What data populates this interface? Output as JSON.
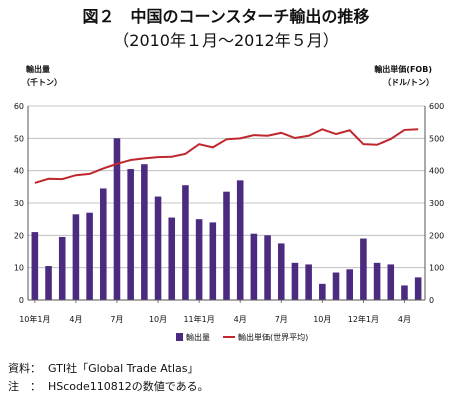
{
  "chart_data": {
    "type": "bar",
    "title": "図２　中国のコーンスターチ輸出の推移",
    "subtitle": "（2010年１月～2012年５月）",
    "y_left_label_line1": "輸出量",
    "y_left_label_line2": "（千トン）",
    "y_right_label_line1": "輸出単価(FOB)",
    "y_right_label_line2": "（ドル/トン）",
    "ylim_left": [
      0,
      60
    ],
    "ylim_right": [
      0,
      600
    ],
    "yticks_left": [
      "0",
      "10",
      "20",
      "30",
      "40",
      "50",
      "60"
    ],
    "yticks_right": [
      "0",
      "100",
      "200",
      "300",
      "400",
      "500",
      "600"
    ],
    "x_tick_labels": [
      {
        "index": 0,
        "label": "10年1月"
      },
      {
        "index": 3,
        "label": "4月"
      },
      {
        "index": 6,
        "label": "7月"
      },
      {
        "index": 9,
        "label": "10月"
      },
      {
        "index": 12,
        "label": "11年1月"
      },
      {
        "index": 15,
        "label": "4月"
      },
      {
        "index": 18,
        "label": "7月"
      },
      {
        "index": 21,
        "label": "10月"
      },
      {
        "index": 24,
        "label": "12年1月"
      },
      {
        "index": 27,
        "label": "4月"
      }
    ],
    "grid": true,
    "legend_position": "bottom",
    "series": [
      {
        "name": "輸出量",
        "type": "bar",
        "axis": "left",
        "color": "#4b2b7f",
        "values": [
          21,
          10.5,
          19.5,
          26.5,
          27,
          34.5,
          50,
          40.5,
          42,
          32,
          25.5,
          35.5,
          25,
          24,
          33.5,
          37,
          20.5,
          20,
          17.5,
          11.5,
          11,
          5,
          8.5,
          9.5,
          19,
          11.5,
          11,
          4.5,
          7
        ]
      },
      {
        "name": "輸出単価(世界平均)",
        "type": "line",
        "axis": "right",
        "color": "#c0272d",
        "values": [
          362,
          375,
          374,
          386,
          390,
          407,
          421,
          433,
          438,
          442,
          443,
          452,
          482,
          472,
          497,
          500,
          510,
          508,
          517,
          501,
          508,
          528,
          513,
          525,
          482,
          480,
          498,
          526,
          528
        ]
      }
    ]
  },
  "notes": {
    "source_label": "資料：",
    "source_text": "GTI社「Global Trade Atlas」",
    "note_label": "注　：",
    "note_text": "HScode110812の数値である。"
  }
}
